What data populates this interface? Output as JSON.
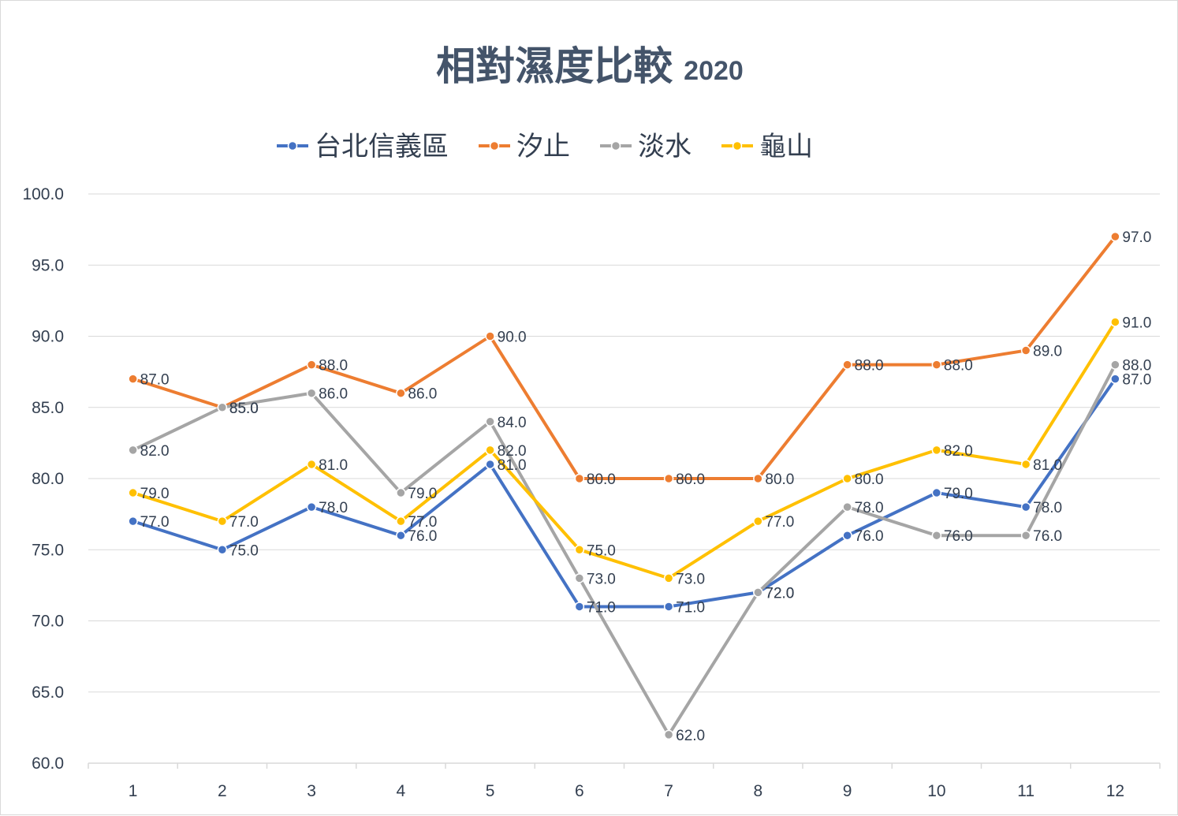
{
  "chart_data": {
    "type": "line",
    "title": "相對濕度比較",
    "subtitle": "2020",
    "xlabel": "",
    "ylabel": "",
    "categories": [
      "1",
      "2",
      "3",
      "4",
      "5",
      "6",
      "7",
      "8",
      "9",
      "10",
      "11",
      "12"
    ],
    "ylim": [
      60,
      100
    ],
    "yticks": [
      "60.0",
      "65.0",
      "70.0",
      "75.0",
      "80.0",
      "85.0",
      "90.0",
      "95.0",
      "100.0"
    ],
    "grid": true,
    "legend_position": "top",
    "series": [
      {
        "name": "台北信義區",
        "color": "#4472c4",
        "values": [
          77,
          75,
          78,
          76,
          81,
          71,
          71,
          72,
          76,
          79,
          78,
          87
        ]
      },
      {
        "name": "汐止",
        "color": "#ed7d31",
        "values": [
          87,
          85,
          88,
          86,
          90,
          80,
          80,
          80,
          88,
          88,
          89,
          97
        ]
      },
      {
        "name": "淡水",
        "color": "#a5a5a5",
        "values": [
          82,
          85,
          86,
          79,
          84,
          73,
          62,
          72,
          78,
          76,
          76,
          88
        ]
      },
      {
        "name": "龜山",
        "color": "#ffc000",
        "values": [
          79,
          77,
          81,
          77,
          82,
          75,
          73,
          77,
          80,
          82,
          81,
          91
        ]
      }
    ]
  }
}
